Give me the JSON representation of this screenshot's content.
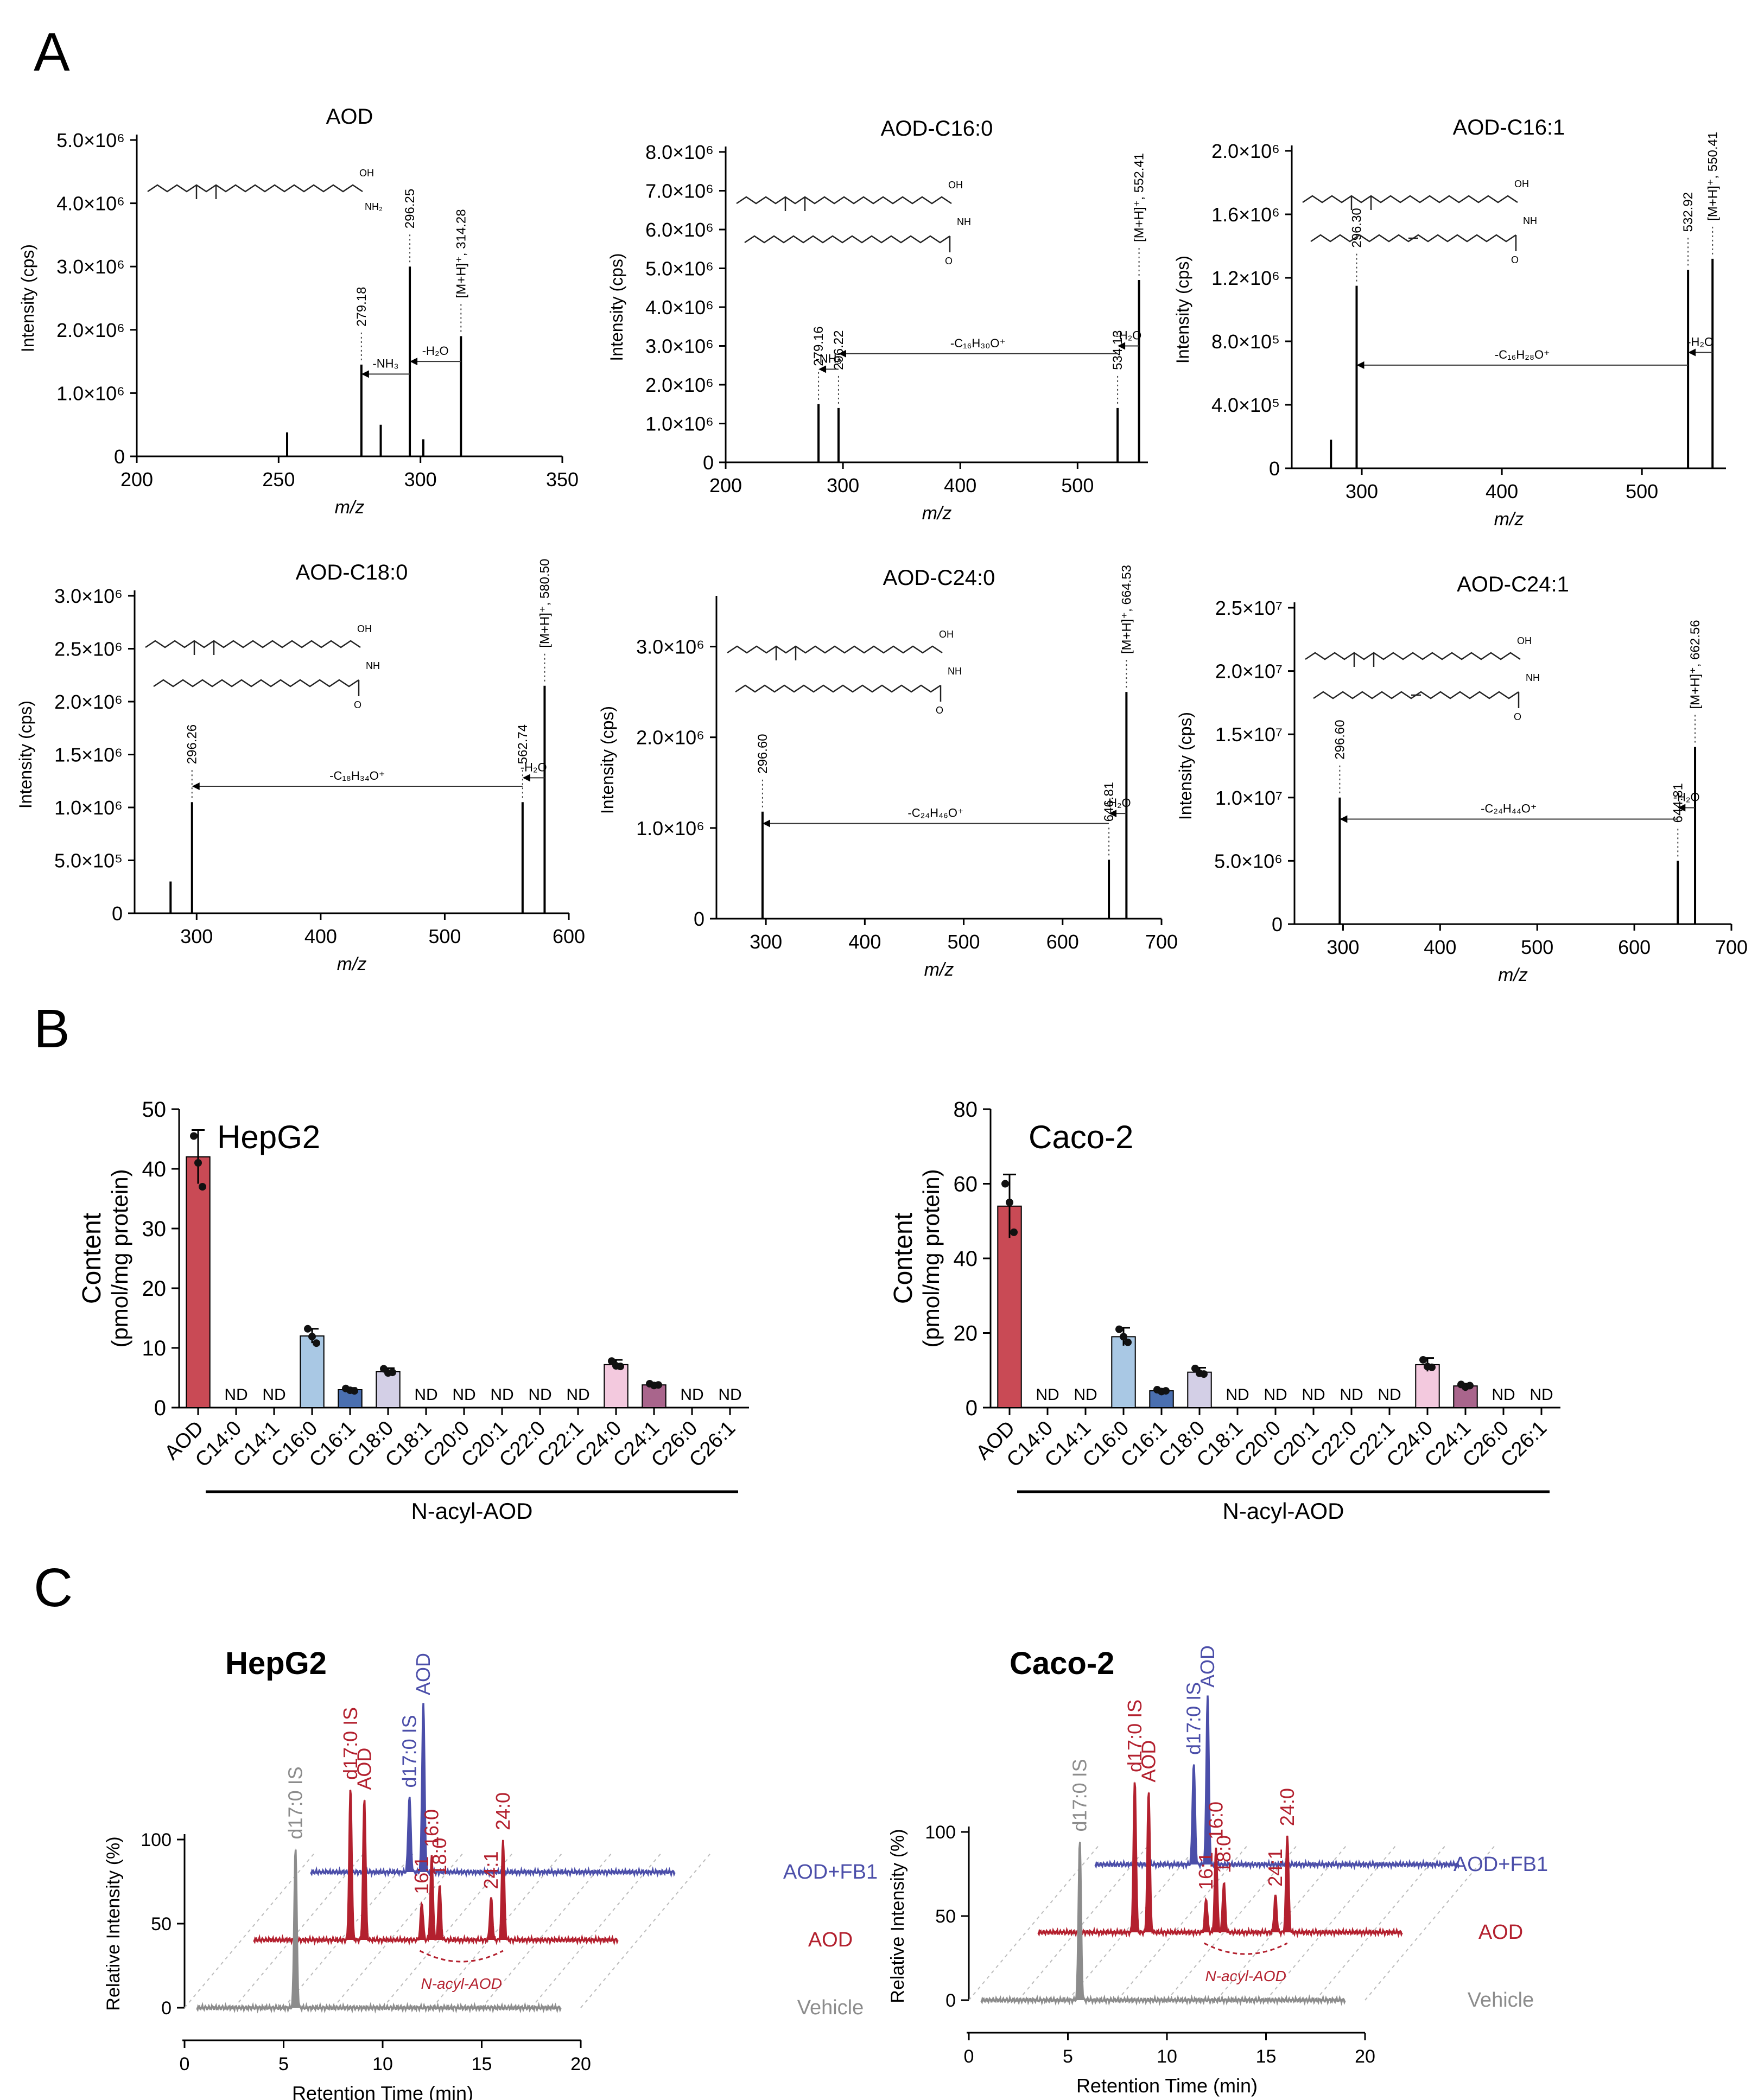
{
  "figure": {
    "panel_letters": [
      "A",
      "B",
      "C"
    ]
  },
  "chart_data": [
    {
      "id": "A1",
      "type": "spectrum",
      "title": "AOD",
      "xlabel": "m/z",
      "ylabel": "Intensity (cps)",
      "xlim": [
        200,
        350
      ],
      "ylim": [
        0,
        5000000
      ],
      "xticks": [
        200,
        250,
        300,
        350
      ],
      "yticks": [
        {
          "value": 0,
          "label": "0"
        },
        {
          "value": 1000000,
          "label": "1.0×10⁶"
        },
        {
          "value": 2000000,
          "label": "2.0×10⁶"
        },
        {
          "value": 3000000,
          "label": "3.0×10⁶"
        },
        {
          "value": 4000000,
          "label": "4.0×10⁶"
        },
        {
          "value": 5000000,
          "label": "5.0×10⁶"
        }
      ],
      "peaks": [
        {
          "mz": 253,
          "intensity": 380000
        },
        {
          "mz": 279.18,
          "intensity": 1450000,
          "label": "279.18"
        },
        {
          "mz": 286,
          "intensity": 500000
        },
        {
          "mz": 296.25,
          "intensity": 3000000,
          "label": "296.25"
        },
        {
          "mz": 301,
          "intensity": 270000
        },
        {
          "mz": 314.28,
          "intensity": 1900000,
          "label": "[M+H]⁺, 314.28"
        }
      ],
      "losses": [
        {
          "from": 296.25,
          "to": 279.18,
          "intensity": 1300000,
          "label": "-NH₃"
        },
        {
          "from": 314.28,
          "to": 296.25,
          "intensity": 1500000,
          "label": "-H₂O"
        }
      ],
      "structure": "AOD"
    },
    {
      "id": "A2",
      "type": "spectrum",
      "title": "AOD-C16:0",
      "xlabel": "m/z",
      "ylabel": "Intensity (cps)",
      "xlim": [
        200,
        560
      ],
      "ylim": [
        0,
        8000000
      ],
      "xticks": [
        200,
        300,
        400,
        500
      ],
      "yticks": [
        {
          "value": 0,
          "label": "0"
        },
        {
          "value": 1000000,
          "label": "1.0×10⁶"
        },
        {
          "value": 2000000,
          "label": "2.0×10⁶"
        },
        {
          "value": 3000000,
          "label": "3.0×10⁶"
        },
        {
          "value": 4000000,
          "label": "4.0×10⁶"
        },
        {
          "value": 5000000,
          "label": "5.0×10⁶"
        },
        {
          "value": 6000000,
          "label": "6.0×10⁶"
        },
        {
          "value": 7000000,
          "label": "7.0×10⁶"
        },
        {
          "value": 8000000,
          "label": "8.0×10⁶"
        }
      ],
      "peaks": [
        {
          "mz": 279.16,
          "intensity": 1500000,
          "label": "279.16"
        },
        {
          "mz": 296.22,
          "intensity": 1400000,
          "label": "296.22"
        },
        {
          "mz": 534.13,
          "intensity": 1400000,
          "label": "534.13"
        },
        {
          "mz": 552.41,
          "intensity": 4700000,
          "label": "[M+H]⁺, 552.41"
        }
      ],
      "losses": [
        {
          "from": 296.22,
          "to": 279.16,
          "intensity": 2400000,
          "label": "-NH₃"
        },
        {
          "from": 534.13,
          "to": 296.22,
          "intensity": 2800000,
          "label": "-C₁₆H₃₀O⁺"
        },
        {
          "from": 552.41,
          "to": 534.13,
          "intensity": 3000000,
          "label": "-H₂O"
        }
      ],
      "structure": "acyl"
    },
    {
      "id": "A3",
      "type": "spectrum",
      "title": "AOD-C16:1",
      "xlabel": "m/z",
      "ylabel": "Intensity (cps)",
      "xlim": [
        250,
        560
      ],
      "ylim": [
        0,
        2000000
      ],
      "xticks": [
        300,
        400,
        500
      ],
      "yticks": [
        {
          "value": 0,
          "label": "0"
        },
        {
          "value": 400000,
          "label": "4.0×10⁵"
        },
        {
          "value": 800000,
          "label": "8.0×10⁵"
        },
        {
          "value": 1200000,
          "label": "1.2×10⁶"
        },
        {
          "value": 1600000,
          "label": "1.6×10⁶"
        },
        {
          "value": 2000000,
          "label": "2.0×10⁶"
        }
      ],
      "peaks": [
        {
          "mz": 278,
          "intensity": 180000
        },
        {
          "mz": 296.3,
          "intensity": 1150000,
          "label": "296.30"
        },
        {
          "mz": 532.92,
          "intensity": 1250000,
          "label": "532.92"
        },
        {
          "mz": 550.41,
          "intensity": 1320000,
          "label": "[M+H]⁺, 550.41"
        }
      ],
      "losses": [
        {
          "from": 532.92,
          "to": 296.3,
          "intensity": 650000,
          "label": "-C₁₆H₂₈O⁺"
        },
        {
          "from": 550.41,
          "to": 532.92,
          "intensity": 730000,
          "label": "-H₂O"
        }
      ],
      "structure": "acyl_unsat"
    },
    {
      "id": "A4",
      "type": "spectrum",
      "title": "AOD-C18:0",
      "xlabel": "m/z",
      "ylabel": "Intensity (cps)",
      "xlim": [
        250,
        600
      ],
      "ylim": [
        0,
        3000000
      ],
      "xticks": [
        300,
        400,
        500,
        600
      ],
      "yticks": [
        {
          "value": 0,
          "label": "0"
        },
        {
          "value": 500000,
          "label": "5.0×10⁵"
        },
        {
          "value": 1000000,
          "label": "1.0×10⁶"
        },
        {
          "value": 1500000,
          "label": "1.5×10⁶"
        },
        {
          "value": 2000000,
          "label": "2.0×10⁶"
        },
        {
          "value": 2500000,
          "label": "2.5×10⁶"
        },
        {
          "value": 3000000,
          "label": "3.0×10⁶"
        }
      ],
      "peaks": [
        {
          "mz": 279,
          "intensity": 300000
        },
        {
          "mz": 296.26,
          "intensity": 1050000,
          "label": "296.26"
        },
        {
          "mz": 562.74,
          "intensity": 1050000,
          "label": "562.74"
        },
        {
          "mz": 580.5,
          "intensity": 2150000,
          "label": "[M+H]⁺, 580.50"
        }
      ],
      "losses": [
        {
          "from": 562.74,
          "to": 296.26,
          "intensity": 1200000,
          "label": "-C₁₈H₃₄O⁺"
        },
        {
          "from": 580.5,
          "to": 562.74,
          "intensity": 1280000,
          "label": "-H₂O"
        }
      ],
      "structure": "acyl"
    },
    {
      "id": "A5",
      "type": "spectrum",
      "title": "AOD-C24:0",
      "xlabel": "m/z",
      "ylabel": "Intensity (cps)",
      "xlim": [
        250,
        700
      ],
      "ylim": [
        0,
        3500000
      ],
      "xticks": [
        300,
        400,
        500,
        600,
        700
      ],
      "yticks": [
        {
          "value": 0,
          "label": "0"
        },
        {
          "value": 1000000,
          "label": "1.0×10⁶"
        },
        {
          "value": 2000000,
          "label": "2.0×10⁶"
        },
        {
          "value": 3000000,
          "label": "3.0×10⁶"
        }
      ],
      "peaks": [
        {
          "mz": 296.6,
          "intensity": 1180000,
          "label": "296.60"
        },
        {
          "mz": 646.81,
          "intensity": 650000,
          "label": "646.81"
        },
        {
          "mz": 664.53,
          "intensity": 2500000,
          "label": "[M+H]⁺, 664.53"
        }
      ],
      "losses": [
        {
          "from": 646.81,
          "to": 296.6,
          "intensity": 1050000,
          "label": "-C₂₄H₄₆O⁺"
        },
        {
          "from": 664.53,
          "to": 646.81,
          "intensity": 1160000,
          "label": "-H₂O"
        }
      ],
      "structure": "acyl"
    },
    {
      "id": "A6",
      "type": "spectrum",
      "title": "AOD-C24:1",
      "xlabel": "m/z",
      "ylabel": "Intensity (cps)",
      "xlim": [
        250,
        700
      ],
      "ylim": [
        0,
        25000000
      ],
      "xticks": [
        300,
        400,
        500,
        600,
        700
      ],
      "yticks": [
        {
          "value": 0,
          "label": "0"
        },
        {
          "value": 5000000,
          "label": "5.0×10⁶"
        },
        {
          "value": 10000000,
          "label": "1.0×10⁷"
        },
        {
          "value": 15000000,
          "label": "1.5×10⁷"
        },
        {
          "value": 20000000,
          "label": "2.0×10⁷"
        },
        {
          "value": 25000000,
          "label": "2.5×10⁷"
        }
      ],
      "peaks": [
        {
          "mz": 296.6,
          "intensity": 10000000,
          "label": "296.60"
        },
        {
          "mz": 644.81,
          "intensity": 5000000,
          "label": "644.81"
        },
        {
          "mz": 662.56,
          "intensity": 14000000,
          "label": "[M+H]⁺, 662.56"
        }
      ],
      "losses": [
        {
          "from": 644.81,
          "to": 296.6,
          "intensity": 8300000,
          "label": "-C₂₄H₄₄O⁺"
        },
        {
          "from": 662.56,
          "to": 644.81,
          "intensity": 9200000,
          "label": "-H₂O"
        }
      ],
      "structure": "acyl_unsat"
    },
    {
      "id": "B1",
      "type": "bar",
      "title": "HepG2",
      "ylabel": "Content",
      "ylabel2": "(pmol/mg protein)",
      "ylim": [
        0,
        50
      ],
      "yticks": [
        0,
        10,
        20,
        30,
        40,
        50
      ],
      "group_label": "N-acyl-AOD",
      "categories": [
        "AOD",
        "C14:0",
        "C14:1",
        "C16:0",
        "C16:1",
        "C18:0",
        "C18:1",
        "C20:0",
        "C20:1",
        "C22:0",
        "C22:1",
        "C24:0",
        "C24:1",
        "C26:0",
        "C26:1"
      ],
      "values": [
        42,
        null,
        null,
        12,
        3,
        6,
        null,
        null,
        null,
        null,
        null,
        7.2,
        3.8,
        null,
        null
      ],
      "errors": [
        4.5,
        0,
        0,
        1.2,
        0.3,
        0.6,
        0,
        0,
        0,
        0,
        0,
        0.8,
        0.3,
        0,
        0
      ],
      "points": [
        [
          45.5,
          41,
          37
        ],
        [],
        [],
        [
          13.2,
          11.9,
          10.8
        ],
        [
          3.2,
          2.9,
          2.8
        ],
        [
          6.5,
          5.8,
          5.9
        ],
        [],
        [],
        [],
        [],
        [],
        [
          7.8,
          7.0,
          6.9
        ],
        [
          4.0,
          3.7,
          3.8
        ],
        [],
        []
      ],
      "nd_label": "ND",
      "colors": [
        "#c94a55",
        "#ffffff",
        "#ffffff",
        "#a9c8e4",
        "#4a6fb0",
        "#d3cfe6",
        "#ffffff",
        "#ffffff",
        "#ffffff",
        "#ffffff",
        "#ffffff",
        "#f3c9de",
        "#a9658c",
        "#ffffff",
        "#ffffff"
      ]
    },
    {
      "id": "B2",
      "type": "bar",
      "title": "Caco-2",
      "ylabel": "Content",
      "ylabel2": "(pmol/mg protein)",
      "ylim": [
        0,
        80
      ],
      "yticks": [
        0,
        20,
        40,
        60,
        80
      ],
      "group_label": "N-acyl-AOD",
      "categories": [
        "AOD",
        "C14:0",
        "C14:1",
        "C16:0",
        "C16:1",
        "C18:0",
        "C18:1",
        "C20:0",
        "C20:1",
        "C22:0",
        "C22:1",
        "C24:0",
        "C24:1",
        "C26:0",
        "C26:1"
      ],
      "values": [
        54,
        null,
        null,
        19,
        4.5,
        9.5,
        null,
        null,
        null,
        null,
        null,
        11.5,
        5.8,
        null,
        null
      ],
      "errors": [
        8.5,
        0,
        0,
        2.4,
        0.5,
        1.2,
        0,
        0,
        0,
        0,
        0,
        1.8,
        0.6,
        0,
        0
      ],
      "points": [
        [
          60,
          55,
          47
        ],
        [],
        [],
        [
          21,
          19,
          17.5
        ],
        [
          4.8,
          4.3,
          4.5
        ],
        [
          10.5,
          9.2,
          9.0
        ],
        [],
        [],
        [],
        [],
        [],
        [
          12.8,
          11.0,
          10.8
        ],
        [
          6.2,
          5.5,
          5.9
        ],
        [],
        []
      ],
      "nd_label": "ND",
      "colors": [
        "#c94a55",
        "#ffffff",
        "#ffffff",
        "#a9c8e4",
        "#4a6fb0",
        "#d3cfe6",
        "#ffffff",
        "#ffffff",
        "#ffffff",
        "#ffffff",
        "#ffffff",
        "#f3c9de",
        "#a9658c",
        "#ffffff",
        "#ffffff"
      ]
    },
    {
      "id": "C1",
      "type": "chromatogram",
      "title": "HepG2",
      "xlabel": "Retention Time (min)",
      "ylabel": "Relative Intensity (%)",
      "xlim": [
        0,
        20
      ],
      "xticks": [
        0,
        5,
        10,
        15,
        20
      ],
      "ylim": [
        0,
        100
      ],
      "yticks": [
        0,
        50,
        100
      ],
      "traces": [
        {
          "name": "Vehicle",
          "color": "#8c8c8c",
          "t0": 0.6,
          "t1": 19,
          "peaks": [
            {
              "rt": 5.6,
              "height": 95,
              "label": "d17:0 IS"
            }
          ]
        },
        {
          "name": "AOD",
          "color": "#b3202e",
          "t0": 0.6,
          "t1": 19,
          "peaks": [
            {
              "rt": 5.5,
              "height": 90,
              "label": "d17:0 IS"
            },
            {
              "rt": 6.2,
              "height": 84,
              "label": "AOD"
            },
            {
              "rt": 9.1,
              "height": 22,
              "label": "16:1"
            },
            {
              "rt": 9.6,
              "height": 50,
              "label": "16:0"
            },
            {
              "rt": 10.0,
              "height": 33,
              "label": "18:0"
            },
            {
              "rt": 12.6,
              "height": 25,
              "label": "24:1"
            },
            {
              "rt": 13.2,
              "height": 60,
              "label": "24:0"
            }
          ]
        },
        {
          "name": "AOD+FB1",
          "color": "#4b4ea9",
          "t0": 0.6,
          "t1": 19,
          "peaks": [
            {
              "rt": 5.6,
              "height": 45,
              "label": "d17:0 IS"
            },
            {
              "rt": 6.3,
              "height": 100,
              "label": "AOD"
            }
          ]
        }
      ],
      "group_label": "N-acyl-AOD"
    },
    {
      "id": "C2",
      "type": "chromatogram",
      "title": "Caco-2",
      "xlabel": "Retention Time (min)",
      "ylabel": "Relative Intensity (%)",
      "xlim": [
        0,
        20
      ],
      "xticks": [
        0,
        5,
        10,
        15,
        20
      ],
      "ylim": [
        0,
        100
      ],
      "yticks": [
        0,
        50,
        100
      ],
      "traces": [
        {
          "name": "Vehicle",
          "color": "#8c8c8c",
          "t0": 0.6,
          "t1": 19,
          "peaks": [
            {
              "rt": 5.6,
              "height": 95,
              "label": "d17:0 IS"
            }
          ]
        },
        {
          "name": "AOD",
          "color": "#b3202e",
          "t0": 0.6,
          "t1": 19,
          "peaks": [
            {
              "rt": 5.5,
              "height": 90,
              "label": "d17:0 IS"
            },
            {
              "rt": 6.2,
              "height": 84,
              "label": "AOD"
            },
            {
              "rt": 9.1,
              "height": 20,
              "label": "16:1"
            },
            {
              "rt": 9.6,
              "height": 50,
              "label": "16:0"
            },
            {
              "rt": 10.0,
              "height": 30,
              "label": "18:0"
            },
            {
              "rt": 12.6,
              "height": 22,
              "label": "24:1"
            },
            {
              "rt": 13.2,
              "height": 58,
              "label": "24:0"
            }
          ]
        },
        {
          "name": "AOD+FB1",
          "color": "#4b4ea9",
          "t0": 0.6,
          "t1": 19,
          "peaks": [
            {
              "rt": 5.6,
              "height": 60,
              "label": "d17:0 IS"
            },
            {
              "rt": 6.3,
              "height": 100,
              "label": "AOD"
            }
          ]
        }
      ],
      "group_label": "N-acyl-AOD"
    }
  ]
}
